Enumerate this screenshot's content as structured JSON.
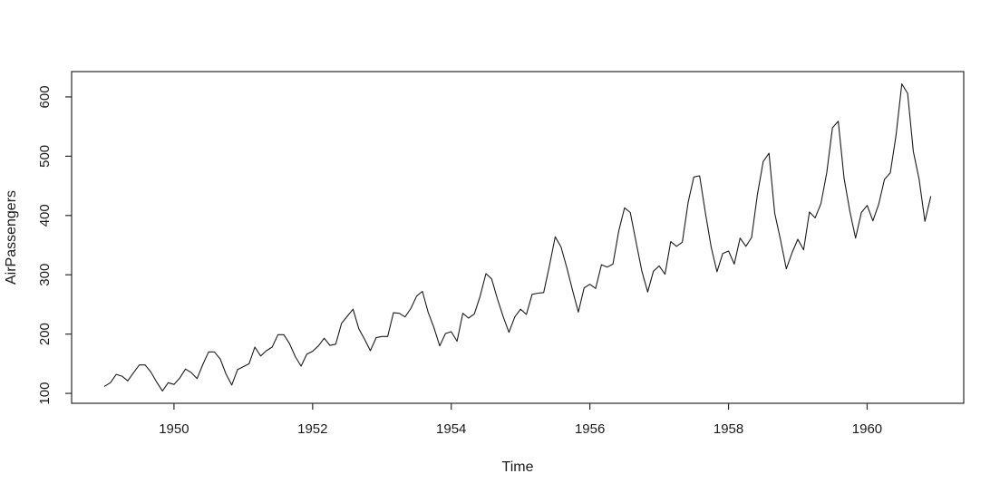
{
  "figure": {
    "background": "#ffffff",
    "line_color": "#1a1a1a",
    "axis_color": "#2a2a2a",
    "text_color": "#1a1a1a"
  },
  "chart_data": {
    "type": "line",
    "title": "",
    "xlabel": "Time",
    "ylabel": "AirPassengers",
    "series": [
      {
        "name": "AirPassengers",
        "start_year": 1949,
        "frequency": 12,
        "values": [
          112,
          118,
          132,
          129,
          121,
          135,
          148,
          148,
          136,
          119,
          104,
          118,
          115,
          126,
          141,
          135,
          125,
          149,
          170,
          170,
          158,
          133,
          114,
          140,
          145,
          150,
          178,
          163,
          172,
          178,
          199,
          199,
          184,
          162,
          146,
          166,
          171,
          180,
          193,
          181,
          183,
          218,
          230,
          242,
          209,
          191,
          172,
          194,
          196,
          196,
          236,
          235,
          229,
          243,
          264,
          272,
          237,
          211,
          180,
          201,
          204,
          188,
          235,
          227,
          234,
          264,
          302,
          293,
          259,
          229,
          203,
          229,
          242,
          233,
          267,
          269,
          270,
          315,
          364,
          347,
          312,
          274,
          237,
          278,
          284,
          277,
          317,
          313,
          318,
          374,
          413,
          405,
          355,
          306,
          271,
          306,
          315,
          301,
          356,
          348,
          355,
          422,
          465,
          467,
          404,
          347,
          305,
          336,
          340,
          318,
          362,
          348,
          363,
          435,
          491,
          505,
          404,
          359,
          310,
          337,
          360,
          342,
          406,
          396,
          420,
          472,
          548,
          559,
          463,
          407,
          362,
          405,
          417,
          391,
          419,
          461,
          472,
          535,
          622,
          606,
          508,
          461,
          390,
          432
        ]
      }
    ],
    "x_ticks": [
      1950,
      1952,
      1954,
      1956,
      1958,
      1960
    ],
    "y_ticks": [
      100,
      200,
      300,
      400,
      500,
      600
    ],
    "xlim": [
      1949.0,
      1960.9167
    ],
    "ylim": [
      104,
      622
    ],
    "axis_expand": 0.04,
    "grid": false,
    "legend": "none"
  }
}
